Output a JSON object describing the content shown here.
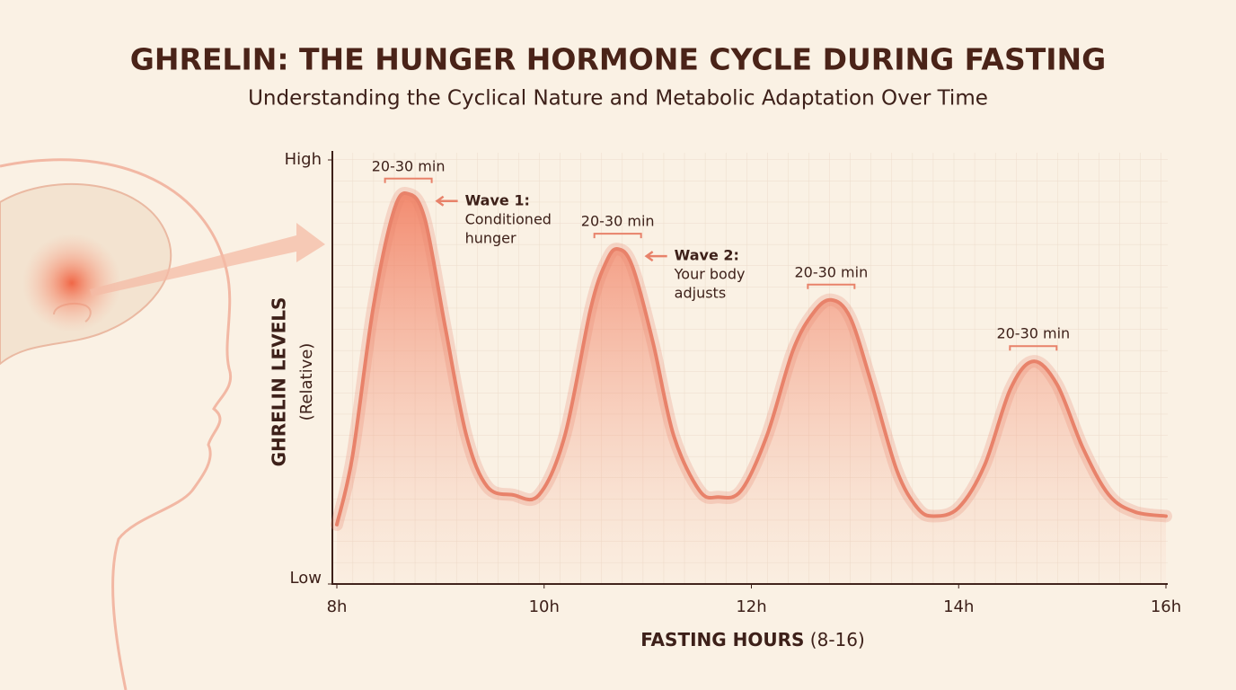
{
  "title": "GHRELIN: THE HUNGER HORMONE CYCLE DURING FASTING",
  "subtitle": "Understanding the Cyclical Nature and Metabolic Adaptation Over Time",
  "chart_data": {
    "type": "line",
    "y_label": "GHRELIN LEVELS",
    "y_label_note": "(Relative)",
    "x_label": "FASTING HOURS",
    "x_label_note": "(8-16)",
    "x": [
      8.0,
      8.15,
      8.35,
      8.55,
      8.69,
      8.85,
      9.05,
      9.25,
      9.45,
      9.7,
      9.95,
      10.2,
      10.45,
      10.6,
      10.71,
      10.85,
      11.05,
      11.25,
      11.5,
      11.68,
      11.9,
      12.15,
      12.4,
      12.6,
      12.77,
      12.95,
      13.15,
      13.4,
      13.6,
      13.76,
      14.0,
      14.25,
      14.5,
      14.72,
      14.95,
      15.2,
      15.45,
      15.7,
      16.0
    ],
    "values": [
      14,
      30,
      65,
      88,
      92,
      86,
      60,
      35,
      23,
      21,
      21,
      35,
      65,
      76,
      79,
      75,
      57,
      35,
      22,
      20.5,
      22,
      35,
      55,
      64,
      67,
      63,
      48,
      27,
      18,
      16,
      18,
      28,
      46,
      52.5,
      47,
      32,
      21,
      17,
      16
    ],
    "color": "#e8826a",
    "xlim": [
      8,
      16
    ],
    "xticks": [
      {
        "value": 8,
        "label": "8h"
      },
      {
        "value": 10,
        "label": "10h"
      },
      {
        "value": 12,
        "label": "12h"
      },
      {
        "value": 14,
        "label": "14h"
      },
      {
        "value": 16,
        "label": "16h"
      }
    ],
    "ylim": [
      0,
      100
    ],
    "yticks": [
      {
        "value": 0,
        "label": "Low"
      },
      {
        "value": 100,
        "label": "High"
      }
    ],
    "grid": true,
    "peak_labels": [
      "20-30 min",
      "20-30 min",
      "20-30 min",
      "20-30 min"
    ],
    "wave_notes": [
      {
        "title": "Wave 1:",
        "lines": [
          "Conditioned",
          "hunger"
        ]
      },
      {
        "title": "Wave 2:",
        "lines": [
          "Your body",
          "adjusts"
        ]
      }
    ]
  }
}
